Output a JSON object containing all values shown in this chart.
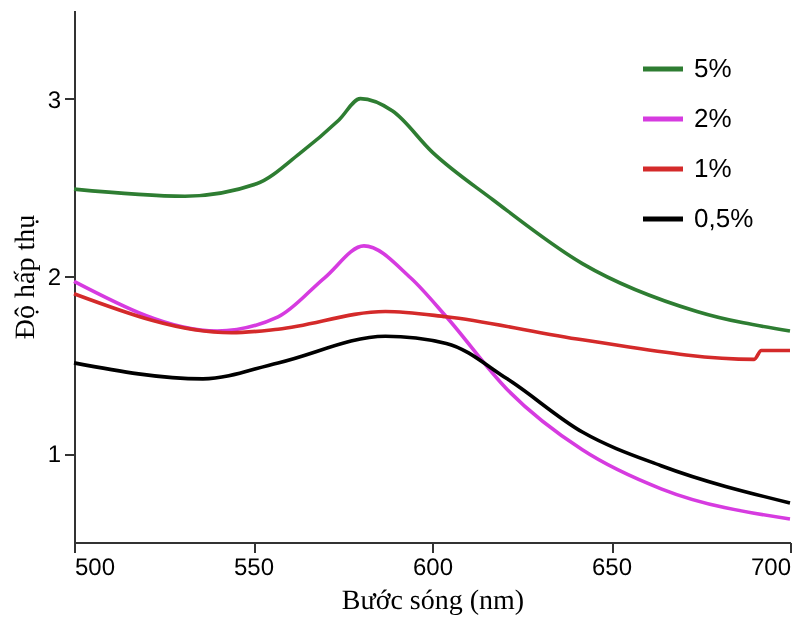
{
  "chart_data": {
    "type": "line",
    "xlabel": "Bước sóng (nm)",
    "ylabel": "Độ hấp thụ",
    "xlim": [
      500,
      700
    ],
    "xticks": [
      500,
      550,
      600,
      650,
      700
    ],
    "ylim": [
      0.5,
      3.5
    ],
    "yticks": [
      1,
      2,
      3
    ],
    "grid": false,
    "legend": "top right",
    "marker": "none",
    "line_style": "solid",
    "series": [
      {
        "name": "5%",
        "color": "#2e7d32",
        "x": [
          500,
          531,
          551,
          563,
          574,
          580,
          589,
          600,
          617,
          642,
          674,
          700
        ],
        "values": [
          2.49,
          2.45,
          2.52,
          2.69,
          2.88,
          3.0,
          2.93,
          2.7,
          2.43,
          2.07,
          1.8,
          1.69
        ]
      },
      {
        "name": "2%",
        "color": "#d63be0",
        "x": [
          500,
          540,
          557,
          570,
          581,
          594,
          604,
          621,
          642,
          664,
          700
        ],
        "values": [
          1.97,
          1.69,
          1.77,
          1.99,
          2.17,
          1.99,
          1.77,
          1.36,
          1.02,
          0.8,
          0.63
        ]
      },
      {
        "name": "1%",
        "color": "#d42a2a",
        "x": [
          500,
          544,
          557,
          587,
          604,
          642,
          690,
          692,
          700
        ],
        "values": [
          1.9,
          1.68,
          1.7,
          1.8,
          1.77,
          1.64,
          1.53,
          1.58,
          1.58
        ]
      },
      {
        "name": "0,5%",
        "color": "#000000",
        "x": [
          500,
          536,
          557,
          587,
          604,
          621,
          642,
          664,
          700
        ],
        "values": [
          1.51,
          1.42,
          1.51,
          1.66,
          1.62,
          1.42,
          1.12,
          0.93,
          0.72
        ]
      }
    ]
  }
}
